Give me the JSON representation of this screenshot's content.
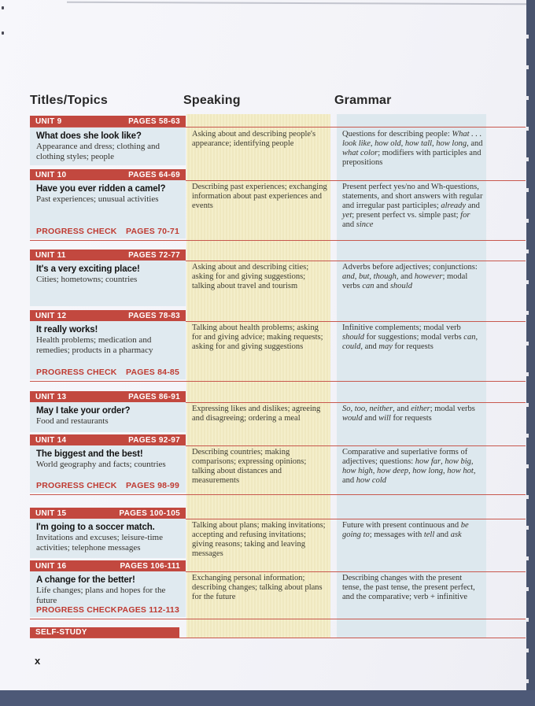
{
  "header": {
    "columns": [
      "Titles/Topics",
      "Speaking",
      "Grammar"
    ]
  },
  "labels": {
    "progress_check": "PROGRESS CHECK",
    "self_study": "SELF-STUDY"
  },
  "footer": {
    "page_number": "x"
  },
  "units": [
    {
      "unit": "UNIT 9",
      "pages": "PAGES 58-63",
      "title": "What does she look like?",
      "topics": "Appearance and dress; clothing and clothing styles; people",
      "speaking": "Asking about and describing people's appearance; identifying people",
      "grammar": "Questions for describing people: <i>What . . . look like</i>, <i>how old</i>, <i>how tall</i>, <i>how long</i>, and <i>what color</i>; modifiers with participles and prepositions",
      "progress_check_pages": null
    },
    {
      "unit": "UNIT 10",
      "pages": "PAGES 64-69",
      "title": "Have you ever ridden a camel?",
      "topics": "Past experiences; unusual activities",
      "speaking": "Describing past experiences; exchanging information about past experiences and events",
      "grammar": "Present perfect yes/no and Wh-questions, statements, and short answers with regular and irregular past participles; <i>already</i> and <i>yet</i>; present perfect vs. simple past; <i>for</i> and <i>since</i>",
      "progress_check_pages": "PAGES 70-71"
    },
    {
      "unit": "UNIT 11",
      "pages": "PAGES 72-77",
      "title": "It's a very exciting place!",
      "topics": "Cities; hometowns; countries",
      "speaking": "Asking about and describing cities; asking for and giving suggestions; talking about travel and tourism",
      "grammar": "Adverbs before adjectives; conjunctions: <i>and</i>, <i>but</i>, <i>though</i>, and <i>however</i>; modal verbs <i>can</i> and <i>should</i>",
      "progress_check_pages": null
    },
    {
      "unit": "UNIT 12",
      "pages": "PAGES 78-83",
      "title": "It really works!",
      "topics": "Health problems; medication and remedies; products in a pharmacy",
      "speaking": "Talking about health problems; asking for and giving advice; making requests; asking for and giving suggestions",
      "grammar": "Infinitive complements; modal verb <i>should</i> for suggestions; modal verbs <i>can</i>, <i>could</i>, and <i>may</i> for requests",
      "progress_check_pages": "PAGES 84-85"
    },
    {
      "unit": "UNIT 13",
      "pages": "PAGES 86-91",
      "title": "May I take your order?",
      "topics": "Food and restaurants",
      "speaking": "Expressing likes and dislikes; agreeing and disagreeing; ordering a meal",
      "grammar": "<i>So</i>, <i>too</i>, <i>neither</i>, and <i>either</i>; modal verbs <i>would</i> and <i>will</i> for requests",
      "progress_check_pages": null
    },
    {
      "unit": "UNIT 14",
      "pages": "PAGES 92-97",
      "title": "The biggest and the best!",
      "topics": "World geography and facts; countries",
      "speaking": "Describing countries; making comparisons; expressing opinions; talking about distances and measurements",
      "grammar": "Comparative and superlative forms of adjectives; questions: <i>how far</i>, <i>how big</i>, <i>how high</i>, <i>how deep</i>, <i>how long</i>, <i>how hot</i>, and <i>how cold</i>",
      "progress_check_pages": "PAGES 98-99"
    },
    {
      "unit": "UNIT 15",
      "pages": "PAGES 100-105",
      "title": "I'm going to a soccer match.",
      "topics": "Invitations and excuses; leisure-time activities; telephone messages",
      "speaking": "Talking about plans; making invitations; accepting and refusing invitations; giving reasons; taking and leaving messages",
      "grammar": "Future with present continuous and <i>be going to</i>; messages with <i>tell</i> and <i>ask</i>",
      "progress_check_pages": null
    },
    {
      "unit": "UNIT 16",
      "pages": "PAGES 106-111",
      "title": "A change for the better!",
      "topics": "Life changes; plans and hopes for the future",
      "speaking": "Exchanging personal information; describing changes; talking about plans for the future",
      "grammar": "Describing changes with the present tense, the past tense, the present perfect, and the comparative; verb + infinitive",
      "progress_check_pages": "PAGES 112-113"
    }
  ]
}
